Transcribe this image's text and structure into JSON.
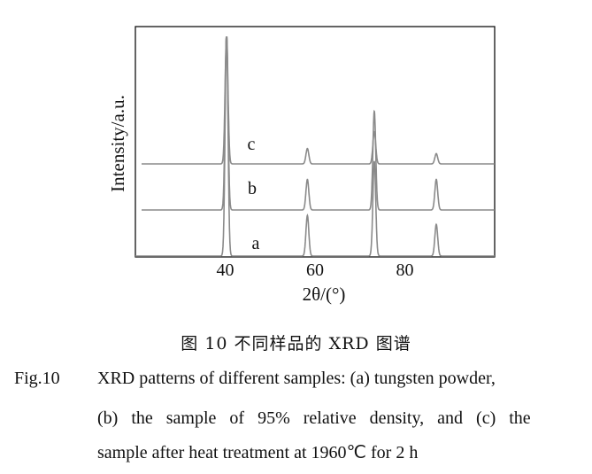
{
  "chart_data": {
    "type": "line",
    "xlabel": "2θ/(°)",
    "ylabel": "Intensity/a.u.",
    "xlim": [
      20,
      100
    ],
    "x_ticks": [
      40,
      60,
      80
    ],
    "grid": false,
    "series": [
      {
        "name": "a",
        "peaks": [
          [
            40.3,
            1.0
          ],
          [
            58.3,
            0.18
          ],
          [
            73.2,
            0.42
          ],
          [
            87.0,
            0.14
          ]
        ]
      },
      {
        "name": "b",
        "peaks": [
          [
            40.3,
            1.0
          ],
          [
            58.3,
            0.17
          ],
          [
            73.2,
            0.55
          ],
          [
            87.0,
            0.17
          ]
        ]
      },
      {
        "name": "c",
        "peaks": [
          [
            40.3,
            1.0
          ],
          [
            58.3,
            0.12
          ],
          [
            73.2,
            0.25
          ],
          [
            87.0,
            0.08
          ]
        ]
      }
    ]
  },
  "caption": {
    "chinese": "图 10   不同样品的 XRD 图谱",
    "fig_label": "Fig.10",
    "line1": "XRD patterns of different samples: (a)  tungsten powder,",
    "line2": "(b)  the sample of 95% relative density, and (c) the",
    "line3": "sample after heat treatment at 1960℃  for 2 h"
  }
}
